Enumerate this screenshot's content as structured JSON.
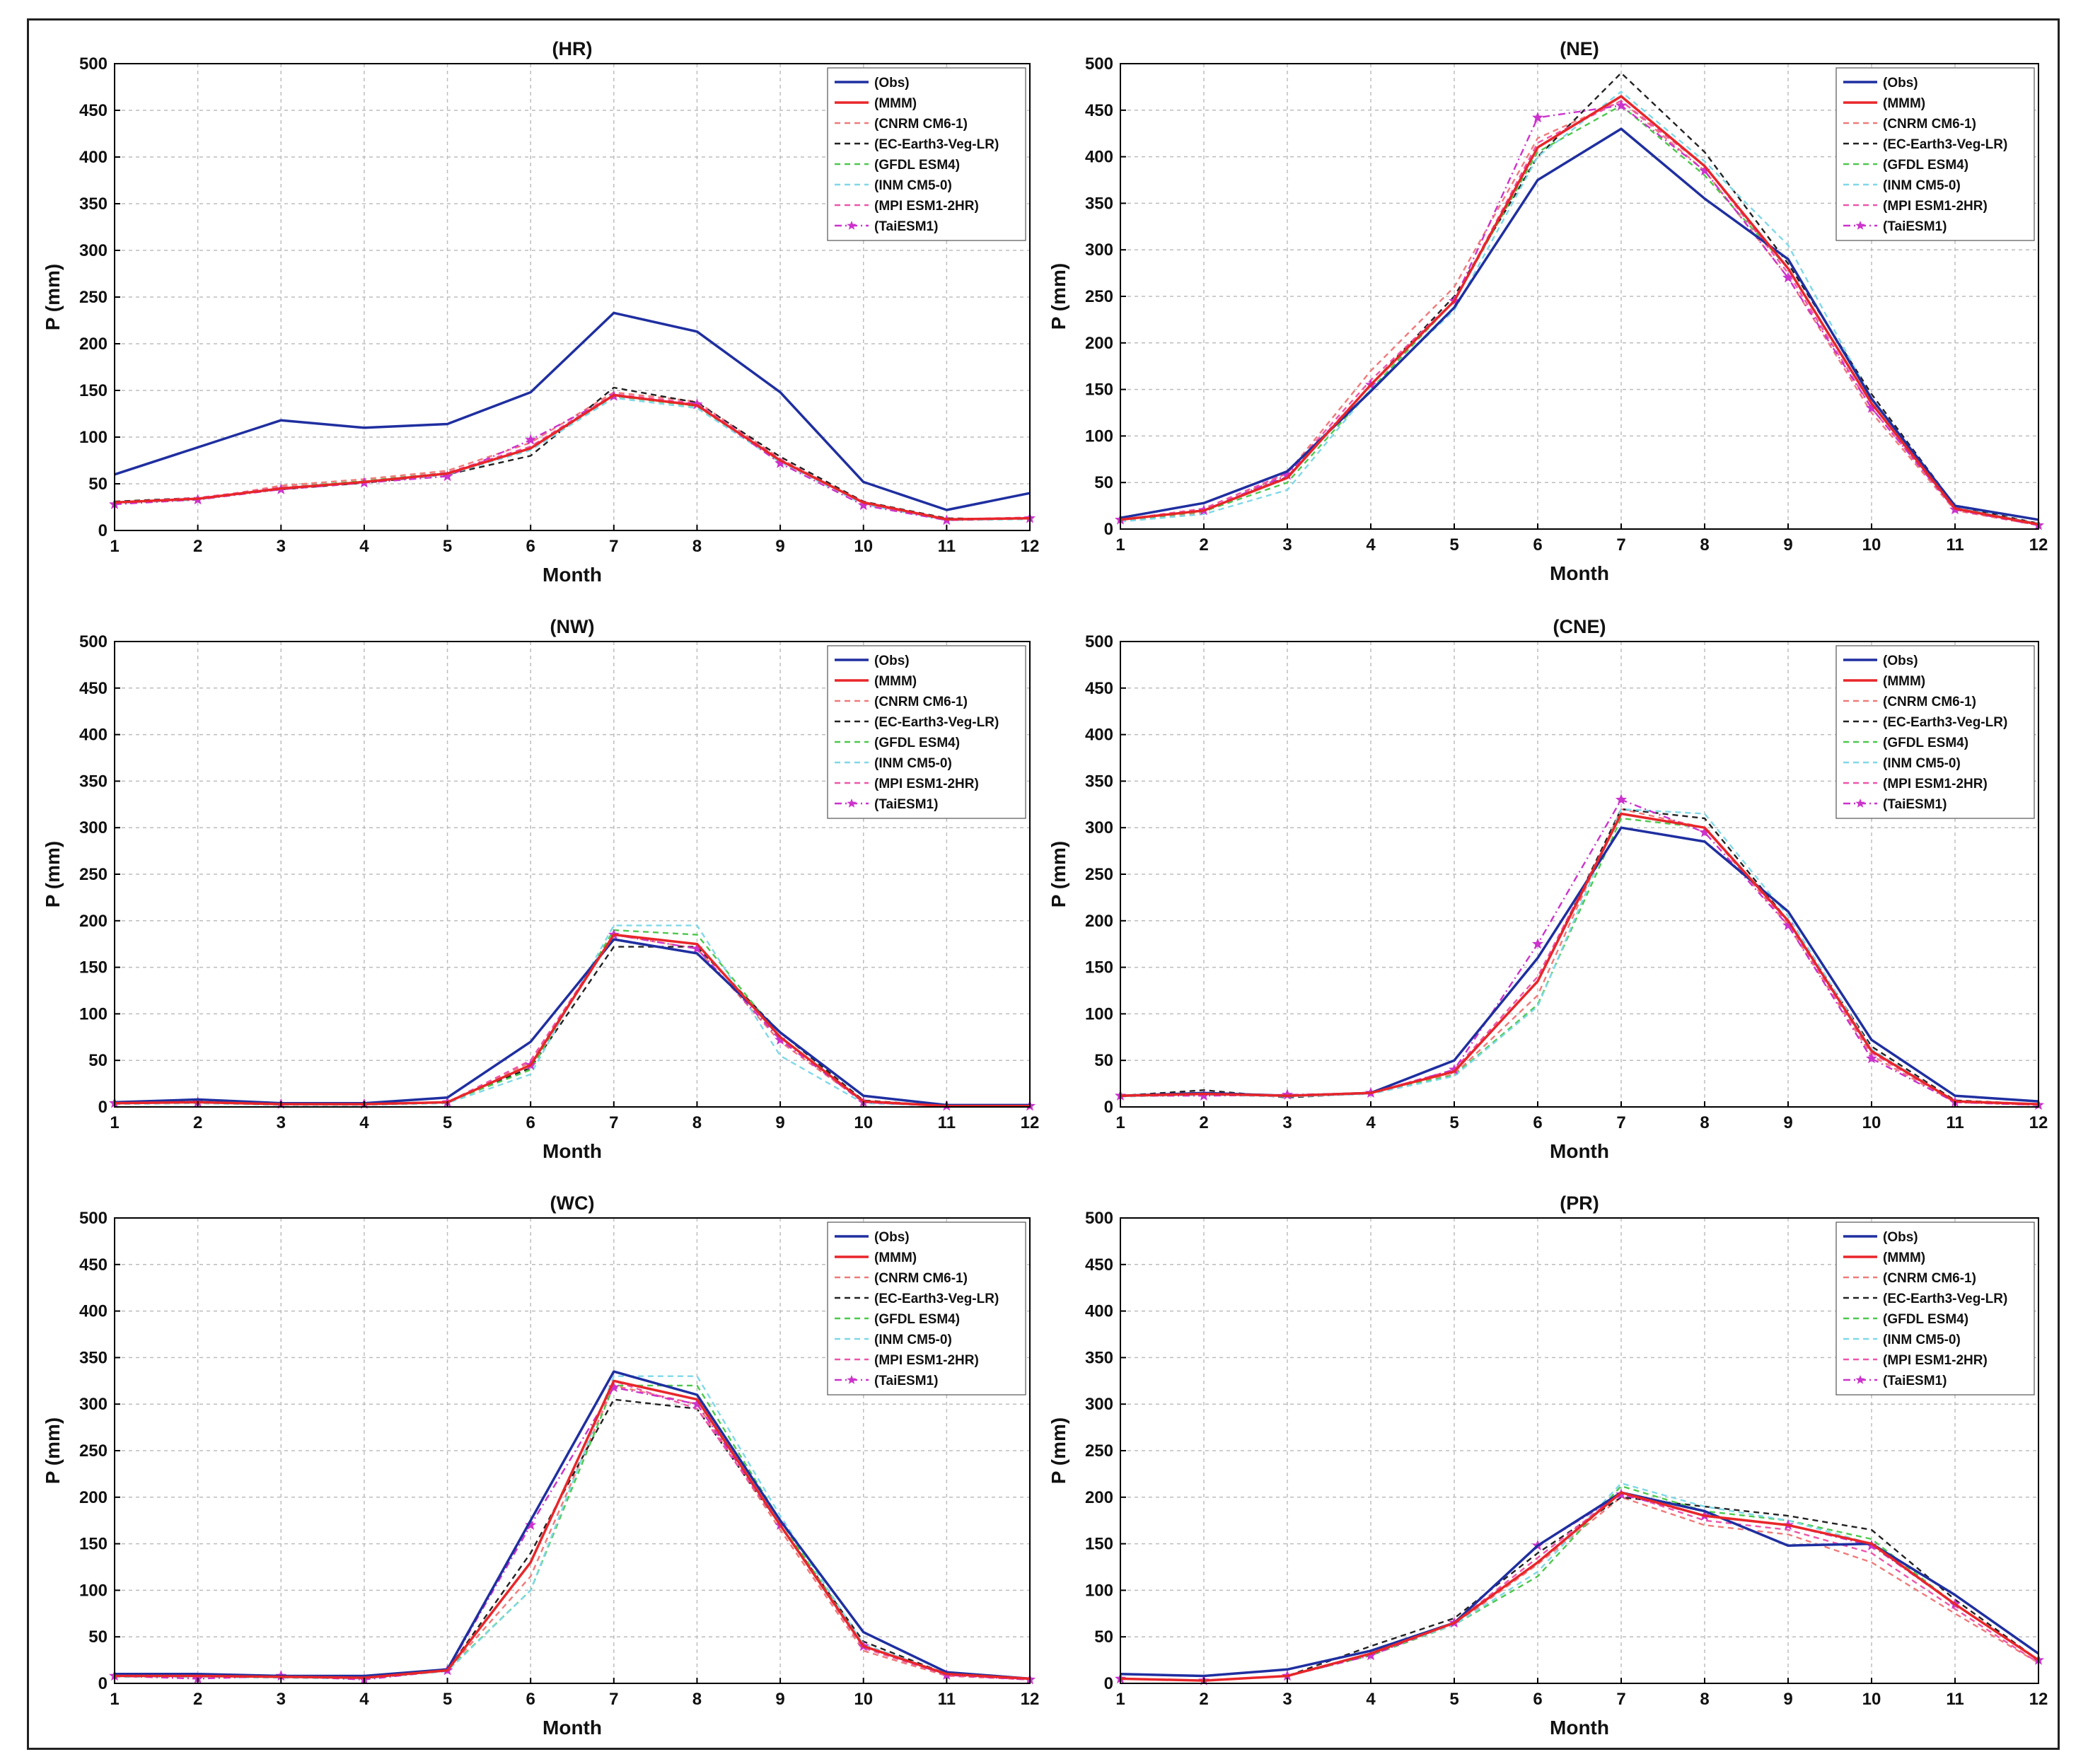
{
  "figure": {
    "xlabel": "Month",
    "ylabel": "P (mm)"
  },
  "legend_labels": [
    "(Obs)",
    "(MMM)",
    "(CNRM CM6-1)",
    "(EC-Earth3-Veg-LR)",
    "(GFDL ESM4)",
    "(INM CM5-0)",
    "(MPI ESM1-2HR)",
    "(TaiESM1)"
  ],
  "series_styles": [
    {
      "name": "(Obs)",
      "color": "#1f2fa0",
      "dash": "solid",
      "marker": "none"
    },
    {
      "name": "(MMM)",
      "color": "#e8262a",
      "dash": "solid",
      "marker": "none"
    },
    {
      "name": "(CNRM CM6-1)",
      "color": "#f07a7a",
      "dash": "dashed",
      "marker": "none"
    },
    {
      "name": "(EC-Earth3-Veg-LR)",
      "color": "#222222",
      "dash": "dashed",
      "marker": "none"
    },
    {
      "name": "(GFDL ESM4)",
      "color": "#4cc94c",
      "dash": "dashed",
      "marker": "none"
    },
    {
      "name": "(INM CM5-0)",
      "color": "#7fd8e8",
      "dash": "dashed",
      "marker": "none"
    },
    {
      "name": "(MPI ESM1-2HR)",
      "color": "#ee55aa",
      "dash": "dashed",
      "marker": "none"
    },
    {
      "name": "(TaiESM1)",
      "color": "#cc33cc",
      "dash": "dashdot",
      "marker": "star"
    }
  ],
  "chart_data": [
    {
      "type": "line",
      "title": "(HR)",
      "xlabel": "Month",
      "ylabel": "P (mm)",
      "x": [
        1,
        2,
        3,
        4,
        5,
        6,
        7,
        8,
        9,
        10,
        11,
        12
      ],
      "xlim": [
        1,
        12
      ],
      "ylim": [
        0,
        500
      ],
      "yticks": [
        0,
        50,
        100,
        150,
        200,
        250,
        300,
        350,
        400,
        450,
        500
      ],
      "grid": true,
      "legend": "top-right",
      "series": [
        {
          "name": "(Obs)",
          "values": [
            60,
            89,
            118,
            110,
            114,
            148,
            233,
            213,
            148,
            52,
            22,
            40
          ]
        },
        {
          "name": "(MMM)",
          "values": [
            30,
            34,
            45,
            52,
            61,
            88,
            145,
            134,
            75,
            30,
            12,
            13
          ]
        },
        {
          "name": "(CNRM CM6-1)",
          "values": [
            29,
            33,
            48,
            55,
            64,
            94,
            148,
            138,
            77,
            29,
            11,
            14
          ]
        },
        {
          "name": "(EC-Earth3-Veg-LR)",
          "values": [
            31,
            35,
            44,
            51,
            60,
            80,
            153,
            137,
            79,
            31,
            13,
            12
          ]
        },
        {
          "name": "(GFDL ESM4)",
          "values": [
            30,
            34,
            46,
            53,
            62,
            87,
            144,
            133,
            74,
            30,
            12,
            13
          ]
        },
        {
          "name": "(INM CM5-0)",
          "values": [
            29,
            33,
            45,
            52,
            60,
            86,
            142,
            131,
            73,
            28,
            11,
            12
          ]
        },
        {
          "name": "(MPI ESM1-2HR)",
          "values": [
            30,
            35,
            46,
            52,
            62,
            90,
            146,
            136,
            76,
            30,
            12,
            14
          ]
        },
        {
          "name": "(TaiESM1)",
          "values": [
            28,
            33,
            44,
            51,
            58,
            97,
            144,
            135,
            72,
            27,
            11,
            13
          ]
        }
      ]
    },
    {
      "type": "line",
      "title": "(NE)",
      "xlabel": "Month",
      "ylabel": "P (mm)",
      "x": [
        1,
        2,
        3,
        4,
        5,
        6,
        7,
        8,
        9,
        10,
        11,
        12
      ],
      "xlim": [
        1,
        12
      ],
      "ylim": [
        0,
        500
      ],
      "yticks": [
        0,
        50,
        100,
        150,
        200,
        250,
        300,
        350,
        400,
        450,
        500
      ],
      "grid": true,
      "legend": "top-right",
      "series": [
        {
          "name": "(Obs)",
          "values": [
            12,
            28,
            62,
            148,
            238,
            375,
            430,
            355,
            290,
            140,
            25,
            10
          ]
        },
        {
          "name": "(MMM)",
          "values": [
            10,
            20,
            55,
            155,
            245,
            410,
            465,
            390,
            280,
            135,
            22,
            5
          ]
        },
        {
          "name": "(CNRM CM6-1)",
          "values": [
            8,
            18,
            60,
            170,
            260,
            420,
            460,
            385,
            270,
            125,
            20,
            4
          ]
        },
        {
          "name": "(EC-Earth3-Veg-LR)",
          "values": [
            10,
            20,
            56,
            155,
            250,
            400,
            490,
            405,
            285,
            145,
            25,
            6
          ]
        },
        {
          "name": "(GFDL ESM4)",
          "values": [
            9,
            19,
            50,
            150,
            245,
            405,
            455,
            380,
            280,
            135,
            22,
            5
          ]
        },
        {
          "name": "(INM CM5-0)",
          "values": [
            8,
            16,
            42,
            150,
            235,
            400,
            470,
            395,
            305,
            140,
            23,
            6
          ]
        },
        {
          "name": "(MPI ESM1-2HR)",
          "values": [
            10,
            22,
            60,
            160,
            245,
            415,
            460,
            390,
            275,
            130,
            21,
            5
          ]
        },
        {
          "name": "(TaiESM1)",
          "values": [
            10,
            20,
            58,
            155,
            245,
            442,
            455,
            385,
            270,
            130,
            21,
            4
          ]
        }
      ]
    },
    {
      "type": "line",
      "title": "(NW)",
      "xlabel": "Month",
      "ylabel": "P (mm)",
      "x": [
        1,
        2,
        3,
        4,
        5,
        6,
        7,
        8,
        9,
        10,
        11,
        12
      ],
      "xlim": [
        1,
        12
      ],
      "ylim": [
        0,
        500
      ],
      "yticks": [
        0,
        50,
        100,
        150,
        200,
        250,
        300,
        350,
        400,
        450,
        500
      ],
      "grid": true,
      "legend": "top-right",
      "series": [
        {
          "name": "(Obs)",
          "values": [
            5,
            8,
            4,
            4,
            10,
            70,
            180,
            165,
            80,
            12,
            2,
            2
          ]
        },
        {
          "name": "(MMM)",
          "values": [
            4,
            5,
            3,
            3,
            5,
            45,
            185,
            175,
            75,
            6,
            1,
            1
          ]
        },
        {
          "name": "(CNRM CM6-1)",
          "values": [
            4,
            4,
            3,
            3,
            5,
            48,
            185,
            170,
            70,
            5,
            1,
            1
          ]
        },
        {
          "name": "(EC-Earth3-Veg-LR)",
          "values": [
            4,
            4,
            3,
            3,
            5,
            42,
            172,
            172,
            80,
            7,
            1,
            1
          ]
        },
        {
          "name": "(GFDL ESM4)",
          "values": [
            4,
            5,
            3,
            3,
            5,
            40,
            190,
            185,
            75,
            6,
            1,
            1
          ]
        },
        {
          "name": "(INM CM5-0)",
          "values": [
            3,
            4,
            2,
            2,
            4,
            35,
            195,
            195,
            55,
            4,
            1,
            1
          ]
        },
        {
          "name": "(MPI ESM1-2HR)",
          "values": [
            4,
            5,
            3,
            3,
            5,
            50,
            185,
            175,
            75,
            5,
            1,
            1
          ]
        },
        {
          "name": "(TaiESM1)",
          "values": [
            4,
            5,
            3,
            3,
            5,
            45,
            185,
            170,
            72,
            5,
            1,
            1
          ]
        }
      ]
    },
    {
      "type": "line",
      "title": "(CNE)",
      "xlabel": "Month",
      "ylabel": "P (mm)",
      "x": [
        1,
        2,
        3,
        4,
        5,
        6,
        7,
        8,
        9,
        10,
        11,
        12
      ],
      "xlim": [
        1,
        12
      ],
      "ylim": [
        0,
        500
      ],
      "yticks": [
        0,
        50,
        100,
        150,
        200,
        250,
        300,
        350,
        400,
        450,
        500
      ],
      "grid": true,
      "legend": "top-right",
      "series": [
        {
          "name": "(Obs)",
          "values": [
            12,
            15,
            12,
            15,
            50,
            160,
            300,
            285,
            210,
            72,
            12,
            6
          ]
        },
        {
          "name": "(MMM)",
          "values": [
            12,
            14,
            12,
            15,
            38,
            135,
            315,
            300,
            200,
            60,
            6,
            3
          ]
        },
        {
          "name": "(CNRM CM6-1)",
          "values": [
            12,
            14,
            12,
            15,
            35,
            120,
            320,
            300,
            195,
            55,
            5,
            2
          ]
        },
        {
          "name": "(EC-Earth3-Veg-LR)",
          "values": [
            12,
            18,
            10,
            15,
            38,
            135,
            320,
            310,
            200,
            65,
            7,
            3
          ]
        },
        {
          "name": "(GFDL ESM4)",
          "values": [
            12,
            14,
            12,
            15,
            34,
            110,
            310,
            300,
            200,
            60,
            6,
            3
          ]
        },
        {
          "name": "(INM CM5-0)",
          "values": [
            11,
            13,
            11,
            14,
            33,
            108,
            320,
            315,
            205,
            62,
            6,
            3
          ]
        },
        {
          "name": "(MPI ESM1-2HR)",
          "values": [
            12,
            14,
            12,
            15,
            40,
            140,
            315,
            300,
            198,
            58,
            6,
            3
          ]
        },
        {
          "name": "(TaiESM1)",
          "values": [
            12,
            12,
            13,
            15,
            40,
            175,
            330,
            295,
            195,
            52,
            5,
            2
          ]
        }
      ]
    },
    {
      "type": "line",
      "title": "(WC)",
      "xlabel": "Month",
      "ylabel": "P (mm)",
      "x": [
        1,
        2,
        3,
        4,
        5,
        6,
        7,
        8,
        9,
        10,
        11,
        12
      ],
      "xlim": [
        1,
        12
      ],
      "ylim": [
        0,
        500
      ],
      "yticks": [
        0,
        50,
        100,
        150,
        200,
        250,
        300,
        350,
        400,
        450,
        500
      ],
      "grid": true,
      "legend": "top-right",
      "series": [
        {
          "name": "(Obs)",
          "values": [
            10,
            10,
            8,
            8,
            15,
            175,
            335,
            310,
            175,
            55,
            12,
            5
          ]
        },
        {
          "name": "(MMM)",
          "values": [
            8,
            8,
            7,
            6,
            14,
            130,
            325,
            305,
            170,
            40,
            10,
            5
          ]
        },
        {
          "name": "(CNRM CM6-1)",
          "values": [
            8,
            8,
            7,
            6,
            14,
            115,
            320,
            300,
            165,
            35,
            8,
            4
          ]
        },
        {
          "name": "(EC-Earth3-Veg-LR)",
          "values": [
            8,
            8,
            7,
            6,
            14,
            140,
            305,
            295,
            170,
            45,
            10,
            5
          ]
        },
        {
          "name": "(GFDL ESM4)",
          "values": [
            8,
            8,
            7,
            6,
            14,
            100,
            320,
            320,
            175,
            40,
            10,
            5
          ]
        },
        {
          "name": "(INM CM5-0)",
          "values": [
            7,
            7,
            6,
            5,
            13,
            100,
            330,
            330,
            180,
            42,
            10,
            5
          ]
        },
        {
          "name": "(MPI ESM1-2HR)",
          "values": [
            8,
            8,
            7,
            6,
            14,
            130,
            325,
            295,
            170,
            38,
            9,
            4
          ]
        },
        {
          "name": "(TaiESM1)",
          "values": [
            8,
            5,
            8,
            4,
            14,
            170,
            318,
            300,
            170,
            40,
            9,
            4
          ]
        }
      ]
    },
    {
      "type": "line",
      "title": "(PR)",
      "xlabel": "Month",
      "ylabel": "P (mm)",
      "x": [
        1,
        2,
        3,
        4,
        5,
        6,
        7,
        8,
        9,
        10,
        11,
        12
      ],
      "xlim": [
        1,
        12
      ],
      "ylim": [
        0,
        500
      ],
      "yticks": [
        0,
        50,
        100,
        150,
        200,
        250,
        300,
        350,
        400,
        450,
        500
      ],
      "grid": true,
      "legend": "top-right",
      "series": [
        {
          "name": "(Obs)",
          "values": [
            10,
            8,
            15,
            35,
            65,
            148,
            205,
            185,
            148,
            150,
            95,
            32
          ]
        },
        {
          "name": "(MMM)",
          "values": [
            5,
            3,
            8,
            32,
            65,
            130,
            205,
            180,
            170,
            150,
            85,
            25
          ]
        },
        {
          "name": "(CNRM CM6-1)",
          "values": [
            5,
            3,
            8,
            30,
            63,
            128,
            200,
            170,
            160,
            130,
            75,
            22
          ]
        },
        {
          "name": "(EC-Earth3-Veg-LR)",
          "values": [
            5,
            3,
            8,
            40,
            70,
            140,
            200,
            190,
            180,
            165,
            90,
            25
          ]
        },
        {
          "name": "(GFDL ESM4)",
          "values": [
            5,
            3,
            8,
            30,
            63,
            115,
            212,
            185,
            175,
            155,
            85,
            25
          ]
        },
        {
          "name": "(INM CM5-0)",
          "values": [
            5,
            3,
            8,
            32,
            63,
            120,
            215,
            190,
            175,
            150,
            85,
            25
          ]
        },
        {
          "name": "(MPI ESM1-2HR)",
          "values": [
            5,
            3,
            8,
            32,
            65,
            135,
            205,
            175,
            165,
            140,
            80,
            22
          ]
        },
        {
          "name": "(TaiESM1)",
          "values": [
            5,
            3,
            8,
            30,
            65,
            148,
            203,
            180,
            170,
            148,
            85,
            25
          ]
        }
      ]
    }
  ]
}
